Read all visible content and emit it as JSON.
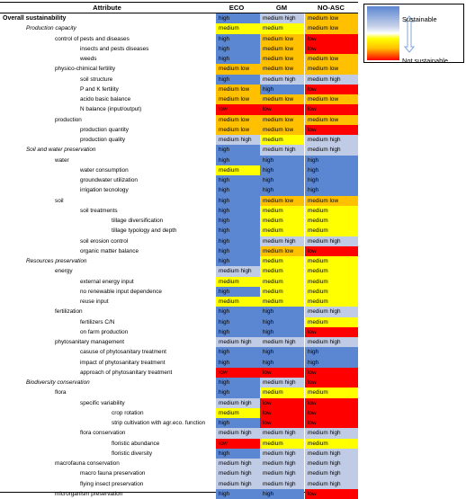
{
  "headers": {
    "attribute": "Attribute",
    "eco": "ECO",
    "gm": "GM",
    "noasc": "NO-ASC"
  },
  "colors": {
    "high": "#5b86d1",
    "medium high": "#c0cce6",
    "medium": "#ffff00",
    "medium low": "#ffc000",
    "low": "#ff0000"
  },
  "rows": [
    {
      "label": "Overall sustainability",
      "level": 0,
      "style": "bold",
      "eco": "high",
      "gm": "medium high",
      "noasc": "medium low"
    },
    {
      "label": "Production capacity",
      "level": 1,
      "style": "ital",
      "eco": "medium",
      "gm": "medium",
      "noasc": "medium low"
    },
    {
      "label": "control of pests and diseases",
      "level": 2,
      "style": "",
      "eco": "high",
      "gm": "medium low",
      "noasc": "low"
    },
    {
      "label": "insects and pests diseases",
      "level": 3,
      "style": "",
      "eco": "high",
      "gm": "medium low",
      "noasc": "low"
    },
    {
      "label": "weeds",
      "level": 3,
      "style": "",
      "eco": "high",
      "gm": "medium low",
      "noasc": "medium low"
    },
    {
      "label": "physico-chimical fertility",
      "level": 2,
      "style": "",
      "eco": "medium low",
      "gm": "medium low",
      "noasc": "medium low"
    },
    {
      "label": "soil structure",
      "level": 3,
      "style": "",
      "eco": "high",
      "gm": "medium high",
      "noasc": "medium high"
    },
    {
      "label": "P and K fertility",
      "level": 3,
      "style": "",
      "eco": "medium low",
      "gm": "high",
      "noasc": "low"
    },
    {
      "label": "acido basic balance",
      "level": 3,
      "style": "",
      "eco": "medium low",
      "gm": "medium low",
      "noasc": "medium low"
    },
    {
      "label": "N balance (input/output)",
      "level": 3,
      "style": "",
      "eco": "low",
      "gm": "low",
      "noasc": "low"
    },
    {
      "label": "production",
      "level": 2,
      "style": "",
      "eco": "medium low",
      "gm": "medium low",
      "noasc": "medium low"
    },
    {
      "label": "production quantity",
      "level": 3,
      "style": "",
      "eco": "medium low",
      "gm": "medium low",
      "noasc": "low"
    },
    {
      "label": "production quality",
      "level": 3,
      "style": "",
      "eco": "medium high",
      "gm": "medium",
      "noasc": "medium high"
    },
    {
      "label": "Soil and water preservation",
      "level": 1,
      "style": "ital",
      "eco": "high",
      "gm": "medium high",
      "noasc": "medium high"
    },
    {
      "label": "water",
      "level": 2,
      "style": "",
      "eco": "high",
      "gm": "high",
      "noasc": "high"
    },
    {
      "label": "water consumption",
      "level": 3,
      "style": "",
      "eco": "medium",
      "gm": "high",
      "noasc": "high"
    },
    {
      "label": "groundwater utilization",
      "level": 3,
      "style": "",
      "eco": "high",
      "gm": "high",
      "noasc": "high"
    },
    {
      "label": "irrigation tecnology",
      "level": 3,
      "style": "",
      "eco": "high",
      "gm": "high",
      "noasc": "high"
    },
    {
      "label": "soil",
      "level": 2,
      "style": "",
      "eco": "high",
      "gm": "medium low",
      "noasc": "medium low"
    },
    {
      "label": "soil treatments",
      "level": 3,
      "style": "",
      "eco": "high",
      "gm": "medium",
      "noasc": "medium"
    },
    {
      "label": "tillage diversification",
      "level": 4,
      "style": "",
      "eco": "high",
      "gm": "medium",
      "noasc": "medium"
    },
    {
      "label": "tillage typology and  depth",
      "level": 4,
      "style": "",
      "eco": "high",
      "gm": "medium",
      "noasc": "medium"
    },
    {
      "label": "soil erosion control",
      "level": 3,
      "style": "",
      "eco": "high",
      "gm": "medium high",
      "noasc": "medium high"
    },
    {
      "label": "organic matter balance",
      "level": 3,
      "style": "",
      "eco": "high",
      "gm": "medium low",
      "noasc": "low"
    },
    {
      "label": "Resources preservation",
      "level": 1,
      "style": "ital",
      "eco": "high",
      "gm": "medium",
      "noasc": "medium"
    },
    {
      "label": "energy",
      "level": 2,
      "style": "",
      "eco": "medium high",
      "gm": "medium",
      "noasc": "medium"
    },
    {
      "label": "external energy input",
      "level": 3,
      "style": "",
      "eco": "medium",
      "gm": "medium",
      "noasc": "medium"
    },
    {
      "label": "no renewable input dependence",
      "level": 3,
      "style": "",
      "eco": "high",
      "gm": "medium",
      "noasc": "medium"
    },
    {
      "label": "reuse input",
      "level": 3,
      "style": "",
      "eco": "medium",
      "gm": "medium",
      "noasc": "medium"
    },
    {
      "label": "fertilization",
      "level": 2,
      "style": "",
      "eco": "high",
      "gm": "high",
      "noasc": "medium high"
    },
    {
      "label": "fertilizers C/N",
      "level": 3,
      "style": "",
      "eco": "high",
      "gm": "high",
      "noasc": "medium"
    },
    {
      "label": "on farm production",
      "level": 3,
      "style": "",
      "eco": "high",
      "gm": "high",
      "noasc": "low"
    },
    {
      "label": "phytosanitary management",
      "level": 2,
      "style": "",
      "eco": "medium high",
      "gm": "medium high",
      "noasc": "medium high"
    },
    {
      "label": "casuse of phytosanitary treatment",
      "level": 3,
      "style": "",
      "eco": "high",
      "gm": "high",
      "noasc": "high"
    },
    {
      "label": "impact of phytosanitary treatment",
      "level": 3,
      "style": "",
      "eco": "high",
      "gm": "high",
      "noasc": "high"
    },
    {
      "label": "approach of phytosanitary treatment",
      "level": 3,
      "style": "",
      "eco": "low",
      "gm": "low",
      "noasc": "low"
    },
    {
      "label": "Biodiversity conservation",
      "level": 1,
      "style": "ital",
      "eco": "high",
      "gm": "medium high",
      "noasc": "low"
    },
    {
      "label": "flora",
      "level": 2,
      "style": "",
      "eco": "high",
      "gm": "medium",
      "noasc": "medium"
    },
    {
      "label": "specific variability",
      "level": 3,
      "style": "",
      "eco": "medium high",
      "gm": "low",
      "noasc": "low"
    },
    {
      "label": "crop rotation",
      "level": 4,
      "style": "",
      "eco": "medium",
      "gm": "low",
      "noasc": "low"
    },
    {
      "label": "strip cultivation with agr.eco. function",
      "level": 4,
      "style": "",
      "eco": "high",
      "gm": "low",
      "noasc": "low"
    },
    {
      "label": "flora conservation",
      "level": 3,
      "style": "",
      "eco": "medium high",
      "gm": "medium high",
      "noasc": "medium high"
    },
    {
      "label": "floristic abundance",
      "level": 4,
      "style": "",
      "eco": "low",
      "gm": "medium",
      "noasc": "medium"
    },
    {
      "label": "floristic diversity",
      "level": 4,
      "style": "",
      "eco": "high",
      "gm": "medium high",
      "noasc": "medium high"
    },
    {
      "label": "macrofauna conservation",
      "level": 2,
      "style": "",
      "eco": "medium high",
      "gm": "medium high",
      "noasc": "medium high"
    },
    {
      "label": "macro fauna preservation",
      "level": 3,
      "style": "",
      "eco": "medium high",
      "gm": "medium high",
      "noasc": "medium high"
    },
    {
      "label": "flying insect preservation",
      "level": 3,
      "style": "",
      "eco": "medium high",
      "gm": "medium high",
      "noasc": "medium high"
    },
    {
      "label": "microrganism preservation",
      "level": 2,
      "style": "",
      "eco": "high",
      "gm": "high",
      "noasc": "low"
    }
  ],
  "legend": {
    "top": "Sustainable",
    "bottom": "Not sustainable"
  }
}
